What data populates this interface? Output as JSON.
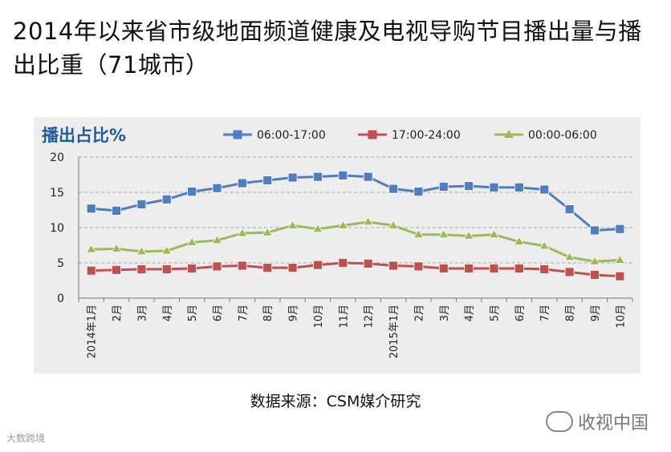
{
  "page": {
    "title": "2014年以来省市级地面频道健康及电视导购节目播出量与播出比重（71城市）",
    "source": "数据来源：CSM媒介研究",
    "watermark_right": "收视中国",
    "watermark_left": "大数跨境"
  },
  "chart_data": {
    "type": "line",
    "ylabel": "播出占比%",
    "ylim": [
      0,
      20
    ],
    "yticks": [
      0,
      5,
      10,
      15,
      20
    ],
    "grid": "horizontal dashed",
    "legend_placement": "top",
    "categories": [
      "2014年1月",
      "2月",
      "3月",
      "4月",
      "5月",
      "6月",
      "7月",
      "8月",
      "9月",
      "10月",
      "11月",
      "12月",
      "2015年1月",
      "2月",
      "3月",
      "4月",
      "5月",
      "6月",
      "7月",
      "8月",
      "9月",
      "10月"
    ],
    "series": [
      {
        "name": "06:00-17:00",
        "color": "#4f7dc1",
        "marker": "square",
        "values": [
          12.7,
          12.4,
          13.3,
          14.0,
          15.1,
          15.6,
          16.3,
          16.7,
          17.1,
          17.2,
          17.4,
          17.2,
          15.5,
          15.1,
          15.8,
          15.9,
          15.7,
          15.7,
          15.4,
          12.6,
          9.6,
          9.8
        ]
      },
      {
        "name": "17:00-24:00",
        "color": "#c0504d",
        "marker": "square",
        "values": [
          3.9,
          4.0,
          4.1,
          4.1,
          4.2,
          4.5,
          4.6,
          4.3,
          4.3,
          4.7,
          5.0,
          4.9,
          4.6,
          4.5,
          4.2,
          4.2,
          4.2,
          4.2,
          4.1,
          3.7,
          3.3,
          3.1
        ]
      },
      {
        "name": "00:00-06:00",
        "color": "#9bbb59",
        "marker": "triangle",
        "values": [
          6.9,
          7.0,
          6.6,
          6.7,
          7.9,
          8.2,
          9.2,
          9.3,
          10.3,
          9.8,
          10.3,
          10.8,
          10.3,
          9.0,
          9.0,
          8.8,
          9.0,
          8.0,
          7.4,
          5.8,
          5.2,
          5.4
        ]
      }
    ]
  }
}
